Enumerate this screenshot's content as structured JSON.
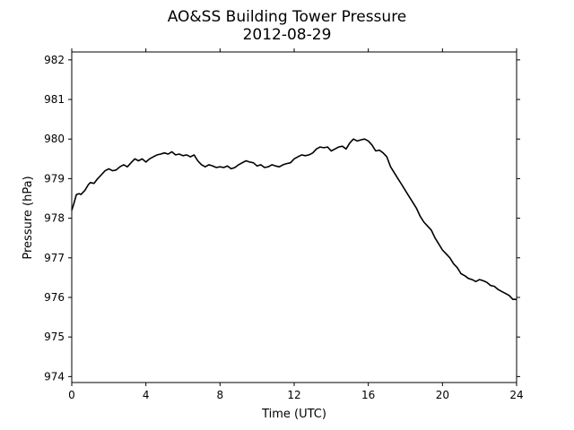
{
  "chart_data": {
    "type": "line",
    "title": "AO&SS Building Tower Pressure",
    "subtitle": "2012-08-29",
    "xlabel": "Time (UTC)",
    "ylabel": "Pressure (hPa)",
    "xlim": [
      0,
      24
    ],
    "ylim": [
      973.85,
      982.2
    ],
    "xticks": [
      0,
      4,
      8,
      12,
      16,
      20,
      24
    ],
    "yticks": [
      974,
      975,
      976,
      977,
      978,
      979,
      980,
      981,
      982
    ],
    "grid": false,
    "line_color": "#000000",
    "series": [
      {
        "x": [
          0,
          0.1,
          0.25,
          0.4,
          0.5,
          0.7,
          0.9,
          1.0,
          1.2,
          1.4,
          1.6,
          1.8,
          2.0,
          2.2,
          2.4,
          2.6,
          2.8,
          3.0,
          3.2,
          3.4,
          3.6,
          3.8,
          4.0,
          4.2,
          4.4,
          4.6,
          4.8,
          5.0,
          5.2,
          5.4,
          5.6,
          5.8,
          6.0,
          6.2,
          6.4,
          6.6,
          6.8,
          7.0,
          7.2,
          7.4,
          7.6,
          7.8,
          8.0,
          8.2,
          8.4,
          8.6,
          8.8,
          9.0,
          9.2,
          9.4,
          9.6,
          9.8,
          10.0,
          10.2,
          10.4,
          10.6,
          10.8,
          11.0,
          11.2,
          11.4,
          11.6,
          11.8,
          12.0,
          12.2,
          12.4,
          12.6,
          12.8,
          13.0,
          13.2,
          13.4,
          13.6,
          13.8,
          14.0,
          14.2,
          14.4,
          14.6,
          14.8,
          15.0,
          15.2,
          15.4,
          15.6,
          15.8,
          16.0,
          16.2,
          16.4,
          16.6,
          16.8,
          17.0,
          17.2,
          17.4,
          17.6,
          17.8,
          18.0,
          18.2,
          18.4,
          18.6,
          18.8,
          19.0,
          19.2,
          19.4,
          19.6,
          19.8,
          20.0,
          20.2,
          20.4,
          20.6,
          20.8,
          21.0,
          21.2,
          21.4,
          21.6,
          21.8,
          22.0,
          22.2,
          22.4,
          22.6,
          22.8,
          23.0,
          23.2,
          23.4,
          23.6,
          23.8,
          24.0
        ],
        "values": [
          978.2,
          978.35,
          978.6,
          978.62,
          978.6,
          978.7,
          978.85,
          978.9,
          978.88,
          979.0,
          979.1,
          979.2,
          979.25,
          979.2,
          979.22,
          979.3,
          979.35,
          979.3,
          979.4,
          979.5,
          979.45,
          979.5,
          979.42,
          979.5,
          979.55,
          979.6,
          979.62,
          979.65,
          979.62,
          979.68,
          979.6,
          979.62,
          979.58,
          979.6,
          979.55,
          979.6,
          979.45,
          979.35,
          979.3,
          979.35,
          979.32,
          979.28,
          979.3,
          979.28,
          979.32,
          979.25,
          979.28,
          979.35,
          979.4,
          979.45,
          979.42,
          979.4,
          979.32,
          979.35,
          979.28,
          979.3,
          979.35,
          979.32,
          979.3,
          979.35,
          979.38,
          979.4,
          979.5,
          979.55,
          979.6,
          979.58,
          979.6,
          979.65,
          979.75,
          979.8,
          979.78,
          979.8,
          979.7,
          979.75,
          979.8,
          979.82,
          979.75,
          979.9,
          980.0,
          979.95,
          979.98,
          980.0,
          979.95,
          979.85,
          979.7,
          979.72,
          979.65,
          979.55,
          979.3,
          979.15,
          979.0,
          978.85,
          978.7,
          978.55,
          978.4,
          978.25,
          978.05,
          977.9,
          977.8,
          977.7,
          977.5,
          977.35,
          977.2,
          977.1,
          977.0,
          976.85,
          976.75,
          976.6,
          976.55,
          976.48,
          976.45,
          976.4,
          976.45,
          976.42,
          976.38,
          976.3,
          976.28,
          976.2,
          976.15,
          976.1,
          976.05,
          975.95,
          975.95
        ]
      }
    ]
  }
}
